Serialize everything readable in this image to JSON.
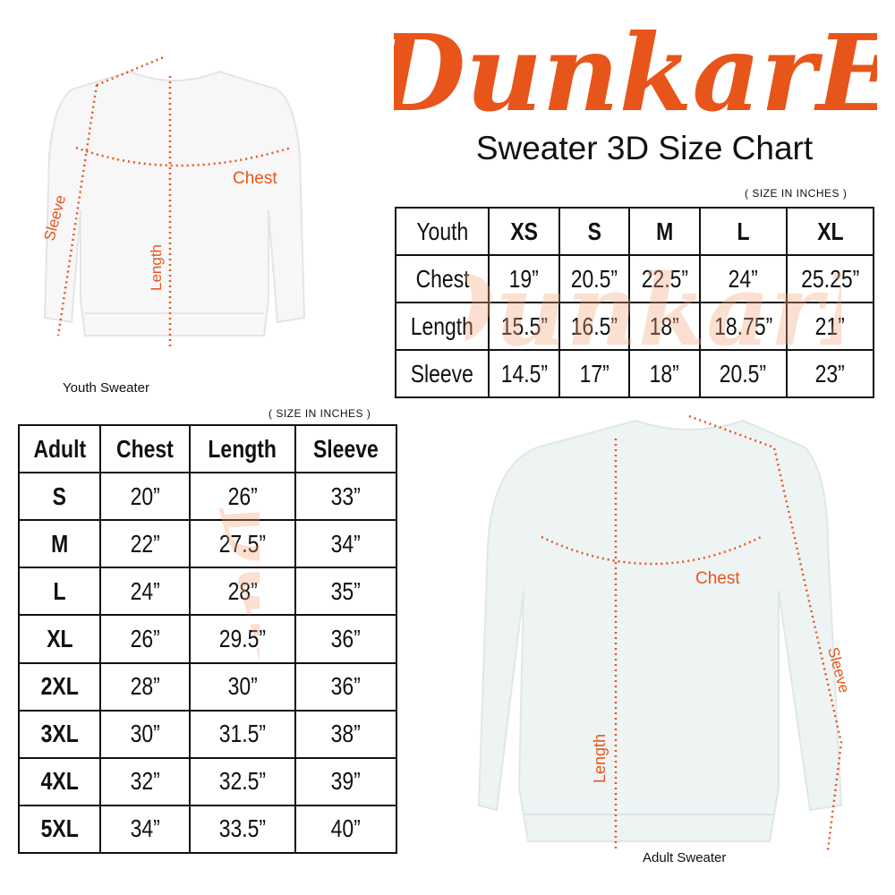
{
  "brand": {
    "logo_text": "DunkarE",
    "color": "#e8551a"
  },
  "title": "Sweater 3D Size Chart",
  "youth": {
    "unit_note": "( SIZE IN INCHES )",
    "caption": "Youth Sweater",
    "headers": [
      "Youth",
      "XS",
      "S",
      "M",
      "L",
      "XL"
    ],
    "rows": [
      [
        "Chest",
        "19”",
        "20.5”",
        "22.5”",
        "24”",
        "25.25”"
      ],
      [
        "Length",
        "15.5”",
        "16.5”",
        "18”",
        "18.75”",
        "21”"
      ],
      [
        "Sleeve",
        "14.5”",
        "17”",
        "18”",
        "20.5”",
        "23”"
      ]
    ],
    "labels": {
      "chest": "Chest",
      "length": "Length",
      "sleeve": "Sleeve"
    }
  },
  "adult": {
    "unit_note": "( SIZE IN INCHES )",
    "caption": "Adult Sweater",
    "headers": [
      "Adult",
      "Chest",
      "Length",
      "Sleeve"
    ],
    "rows": [
      [
        "S",
        "20”",
        "26”",
        "33”"
      ],
      [
        "M",
        "22”",
        "27.5”",
        "34”"
      ],
      [
        "L",
        "24”",
        "28”",
        "35”"
      ],
      [
        "XL",
        "26”",
        "29.5”",
        "36”"
      ],
      [
        "2XL",
        "28”",
        "30”",
        "36”"
      ],
      [
        "3XL",
        "30”",
        "31.5”",
        "38”"
      ],
      [
        "4XL",
        "32”",
        "32.5”",
        "39”"
      ],
      [
        "5XL",
        "34”",
        "33.5”",
        "40”"
      ]
    ],
    "labels": {
      "chest": "Chest",
      "length": "Length",
      "sleeve": "Sleeve"
    }
  }
}
